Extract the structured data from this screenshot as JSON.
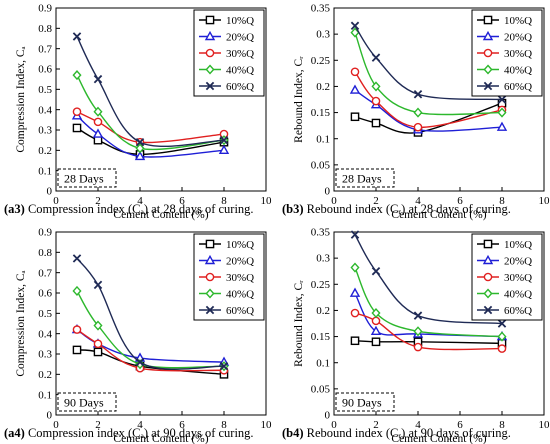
{
  "series_styles": [
    {
      "name": "10%Q",
      "color": "#000000",
      "marker": "square"
    },
    {
      "name": "20%Q",
      "color": "#1f1fd6",
      "marker": "triangle"
    },
    {
      "name": "30%Q",
      "color": "#e02020",
      "marker": "circle"
    },
    {
      "name": "40%Q",
      "color": "#2db82d",
      "marker": "diamond"
    },
    {
      "name": "60%Q",
      "color": "#1f2a55",
      "marker": "x"
    }
  ],
  "chart_data": [
    {
      "type": "line",
      "id": "a3",
      "caption_bold": "(a3)",
      "caption_text": " Compression index (Cₐ) at 28 days of curing.",
      "xlabel": "Cement Content (%)",
      "ylabel": "Compression Index, Cₐ",
      "box_label": "28 Days",
      "xlim": [
        0,
        10
      ],
      "ylim": [
        0,
        0.9
      ],
      "xticks": [
        0,
        2,
        4,
        6,
        8,
        10
      ],
      "xtick_labels": [
        "0",
        "2",
        "4",
        "6",
        "8",
        "10"
      ],
      "yticks": [
        0,
        0.1,
        0.2,
        0.3,
        0.4,
        0.5,
        0.6,
        0.7,
        0.8,
        0.9
      ],
      "ytick_labels": [
        "0",
        "0.1",
        "0.2",
        "0.3",
        "0.4",
        "0.5",
        "0.6",
        "0.7",
        "0.8",
        "0.9"
      ],
      "x": [
        1,
        2,
        4,
        8
      ],
      "series": [
        {
          "name": "10%Q",
          "values": [
            0.31,
            0.25,
            0.18,
            0.24
          ]
        },
        {
          "name": "20%Q",
          "values": [
            0.37,
            0.28,
            0.17,
            0.2
          ]
        },
        {
          "name": "30%Q",
          "values": [
            0.39,
            0.34,
            0.24,
            0.28
          ]
        },
        {
          "name": "40%Q",
          "values": [
            0.57,
            0.39,
            0.21,
            0.25
          ]
        },
        {
          "name": "60%Q",
          "values": [
            0.76,
            0.55,
            0.24,
            0.25
          ]
        }
      ]
    },
    {
      "type": "line",
      "id": "b3",
      "caption_bold": "(b3)",
      "caption_text": " Rebound index (Cᵣ) at 28 days of curing.",
      "xlabel": "Cement Content (%)",
      "ylabel": "Rebound Index, Cᵣ",
      "box_label": "28 Days",
      "xlim": [
        0,
        10
      ],
      "ylim": [
        0,
        0.35
      ],
      "xticks": [
        0,
        2,
        4,
        6,
        8,
        10
      ],
      "xtick_labels": [
        "0",
        "2",
        "4",
        "6",
        "8",
        "10"
      ],
      "yticks": [
        0,
        0.05,
        0.1,
        0.15,
        0.2,
        0.25,
        0.3,
        0.35
      ],
      "ytick_labels": [
        "0",
        "0.05",
        "0.1",
        "0.15",
        "0.2",
        "0.25",
        "0.3",
        "0.35"
      ],
      "x": [
        1,
        2,
        4,
        8
      ],
      "series": [
        {
          "name": "10%Q",
          "values": [
            0.142,
            0.13,
            0.112,
            0.168
          ]
        },
        {
          "name": "20%Q",
          "values": [
            0.193,
            0.165,
            0.117,
            0.122
          ]
        },
        {
          "name": "30%Q",
          "values": [
            0.228,
            0.172,
            0.122,
            0.155
          ]
        },
        {
          "name": "40%Q",
          "values": [
            0.303,
            0.2,
            0.15,
            0.15
          ]
        },
        {
          "name": "60%Q",
          "values": [
            0.316,
            0.255,
            0.185,
            0.175
          ]
        }
      ]
    },
    {
      "type": "line",
      "id": "a4",
      "caption_bold": "(a4)",
      "caption_text": " Compression index (Cₐ) at 90 days of curing.",
      "xlabel": "Cement Content (%)",
      "ylabel": "Compression Index, Cₐ",
      "box_label": "90 Days",
      "xlim": [
        0,
        10
      ],
      "ylim": [
        0,
        0.9
      ],
      "xticks": [
        0,
        2,
        4,
        6,
        8,
        10
      ],
      "xtick_labels": [
        "0",
        "2",
        "4",
        "6",
        "8",
        "10"
      ],
      "yticks": [
        0,
        0.1,
        0.2,
        0.3,
        0.4,
        0.5,
        0.6,
        0.7,
        0.8,
        0.9
      ],
      "ytick_labels": [
        "0",
        "0.1",
        "0.2",
        "0.3",
        "0.4",
        "0.5",
        "0.6",
        "0.7",
        "0.8",
        "0.9"
      ],
      "x": [
        1,
        2,
        4,
        8
      ],
      "series": [
        {
          "name": "10%Q",
          "values": [
            0.32,
            0.31,
            0.24,
            0.2
          ]
        },
        {
          "name": "20%Q",
          "values": [
            0.42,
            0.35,
            0.28,
            0.26
          ]
        },
        {
          "name": "30%Q",
          "values": [
            0.42,
            0.35,
            0.23,
            0.22
          ]
        },
        {
          "name": "40%Q",
          "values": [
            0.61,
            0.44,
            0.25,
            0.24
          ]
        },
        {
          "name": "60%Q",
          "values": [
            0.77,
            0.64,
            0.26,
            0.24
          ]
        }
      ]
    },
    {
      "type": "line",
      "id": "b4",
      "caption_bold": "(b4)",
      "caption_text": " Rebound index (Cᵣ) at 90 days of curing.",
      "xlabel": "Cement Content (%)",
      "ylabel": "Rebound Index, Cᵣ",
      "box_label": "90 Days",
      "xlim": [
        0,
        10
      ],
      "ylim": [
        0,
        0.35
      ],
      "xticks": [
        0,
        2,
        4,
        6,
        8,
        10
      ],
      "xtick_labels": [
        "0",
        "2",
        "4",
        "6",
        "8",
        "10"
      ],
      "yticks": [
        0,
        0.05,
        0.1,
        0.15,
        0.2,
        0.25,
        0.3,
        0.35
      ],
      "ytick_labels": [
        "0",
        "0.05",
        "0.1",
        "0.15",
        "0.2",
        "0.25",
        "0.3",
        "0.35"
      ],
      "x": [
        1,
        2,
        4,
        8
      ],
      "series": [
        {
          "name": "10%Q",
          "values": [
            0.142,
            0.14,
            0.14,
            0.137
          ]
        },
        {
          "name": "20%Q",
          "values": [
            0.233,
            0.16,
            0.155,
            0.15
          ]
        },
        {
          "name": "30%Q",
          "values": [
            0.195,
            0.18,
            0.13,
            0.127
          ]
        },
        {
          "name": "40%Q",
          "values": [
            0.282,
            0.195,
            0.16,
            0.15
          ]
        },
        {
          "name": "60%Q",
          "values": [
            0.345,
            0.275,
            0.19,
            0.175
          ]
        }
      ]
    }
  ]
}
